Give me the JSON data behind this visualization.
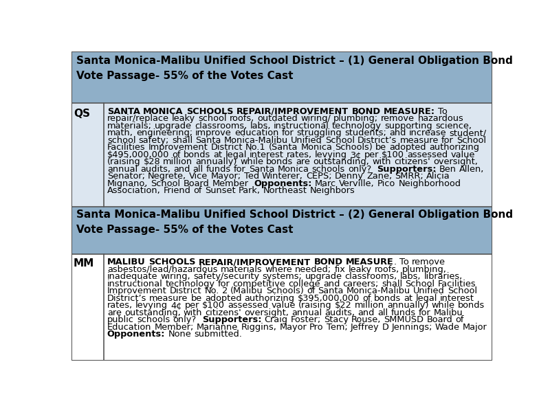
{
  "background_color": "#ffffff",
  "outer_border_color": "#555555",
  "header_bg_color": "#8fafc8",
  "cell_bg_color": "#dce6f0",
  "white_bg_color": "#ffffff",
  "divider_color": "#555555",
  "section1_header": "Santa Monica-Malibu Unified School District – (1) General Obligation Bond\nVote Passage- 55% of the Votes Cast",
  "section1_label": "QS",
  "section1_bold_intro": "SANTA MONICA SCHOOLS REPAIR/IMPROVEMENT BOND MEASURE:",
  "section1_body": " To repair/replace leaky school roofs, outdated wiring/ plumbing; remove hazardous materials; upgrade classrooms, labs, instructional technology supporting science, math, engineering; improve education for struggling students; and increase student/ school safety; shall Santa Monica-Malibu Unified School District’s measure for School Facilities Improvement District No.1 (Santa Monica Schools) be adopted authorizing $495,000,000 of bonds at legal interest rates, levying 3¢ per $100 assessed value (raising $28 million annually) while bonds are outstanding, with citizens' oversight, annual audits, and all funds for Santa Monica schools only?  ",
  "section1_sup_label": "Supporters:",
  "section1_sup_text": " Ben Allen, Senator; Negrete, Vice Mayor; Ted Winterer, CEPS; Denny Zane, SMRR; Alicia Mignano, School Board Member  ",
  "section1_opp_label": "Opponents:",
  "section1_opp_text": " Marc Verville, Pico Neighborhood Association, Friend of Sunset Park, Northeast Neighbors",
  "section2_header": "Santa Monica-Malibu Unified School District – (2) General Obligation Bond\nVote Passage- 55% of the Votes Cast",
  "section2_label": "MM",
  "section2_bold_intro": "MALIBU SCHOOLS REPAIR/IMPROVEMENT BOND MEASURE",
  "section2_body": ". To remove asbestos/lead/hazardous materials where needed; fix leaky roofs, plumbing, inadequate wiring, safety/security systems; upgrade classrooms, labs, libraries, instructional technology for competitive college and careers; shall School Facilities Improvement District No. 2 (Malibu Schools) of Santa Monica-Malibu Unified School District’s measure be adopted authorizing $395,000,000 of bonds at legal interest rates, levying 4¢ per $100 assessed value (raising $22 million annually) while bonds are outstanding, with citizens' oversight, annual audits, and all funds for Malibu public schools only?  ",
  "section2_sup_label": "Supporters:",
  "section2_sup_text": " Craig Foster; Stacy Rouse, SMMUSD Board of Education Member; Marianne Riggins, Mayor Pro Tem; Jeffrey D Jennings; Wade Major\n",
  "section2_opp_label": "Opponents:",
  "section2_opp_text": " None submitted."
}
